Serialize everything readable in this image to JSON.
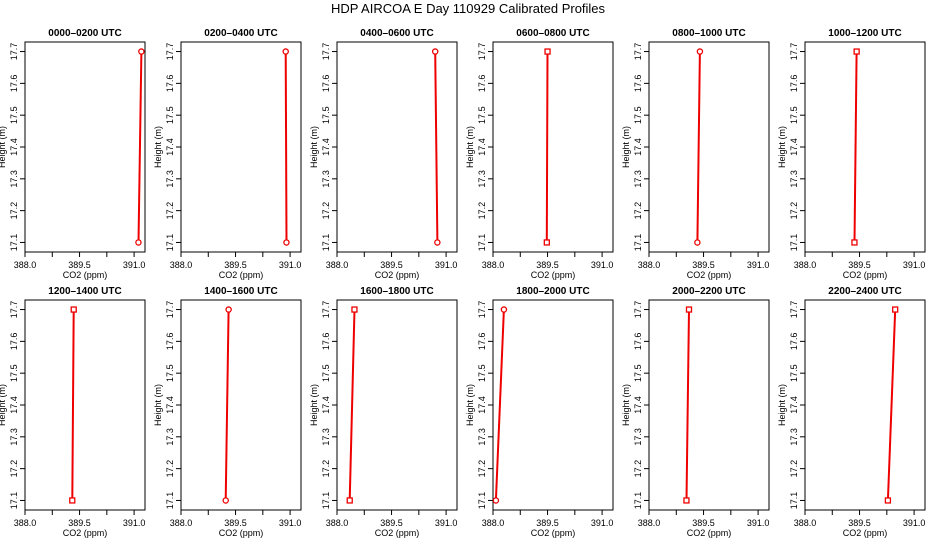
{
  "figure": {
    "title": "HDP AIRCOA E  Day 110929  Calibrated Profiles"
  },
  "chart_data": [
    {
      "type": "line",
      "title": "0000–0200 UTC",
      "xlabel": "CO2 (ppm)",
      "ylabel": "Height (m)",
      "xlim": [
        388.0,
        391.3
      ],
      "ylim": [
        17.07,
        17.73
      ],
      "xticks": [
        "388.0",
        "389.5",
        "391.0"
      ],
      "yticks": [
        "17.1",
        "17.2",
        "17.3",
        "17.4",
        "17.5",
        "17.6",
        "17.7"
      ],
      "series": [
        {
          "x": [
            391.12,
            391.2
          ],
          "y": [
            17.1,
            17.7
          ],
          "marker": "circle"
        }
      ]
    },
    {
      "type": "line",
      "title": "0200–0400 UTC",
      "xlabel": "CO2 (ppm)",
      "ylabel": "Height (m)",
      "xlim": [
        388.0,
        391.3
      ],
      "ylim": [
        17.07,
        17.73
      ],
      "xticks": [
        "388.0",
        "389.5",
        "391.0"
      ],
      "yticks": [
        "17.1",
        "17.2",
        "17.3",
        "17.4",
        "17.5",
        "17.6",
        "17.7"
      ],
      "series": [
        {
          "x": [
            390.9,
            390.88
          ],
          "y": [
            17.1,
            17.7
          ],
          "marker": "circle"
        }
      ]
    },
    {
      "type": "line",
      "title": "0400–0600 UTC",
      "xlabel": "CO2 (ppm)",
      "ylabel": "Height (m)",
      "xlim": [
        388.0,
        391.3
      ],
      "ylim": [
        17.07,
        17.73
      ],
      "xticks": [
        "388.0",
        "389.5",
        "391.0"
      ],
      "yticks": [
        "17.1",
        "17.2",
        "17.3",
        "17.4",
        "17.5",
        "17.6",
        "17.7"
      ],
      "series": [
        {
          "x": [
            390.76,
            390.7
          ],
          "y": [
            17.1,
            17.7
          ],
          "marker": "circle"
        }
      ]
    },
    {
      "type": "line",
      "title": "0600–0800 UTC",
      "xlabel": "CO2 (ppm)",
      "ylabel": "Height (m)",
      "xlim": [
        388.0,
        391.3
      ],
      "ylim": [
        17.07,
        17.73
      ],
      "xticks": [
        "388.0",
        "389.5",
        "391.0"
      ],
      "yticks": [
        "17.1",
        "17.2",
        "17.3",
        "17.4",
        "17.5",
        "17.6",
        "17.7"
      ],
      "series": [
        {
          "x": [
            389.48,
            389.5
          ],
          "y": [
            17.1,
            17.7
          ],
          "marker": "square"
        }
      ]
    },
    {
      "type": "line",
      "title": "0800–1000 UTC",
      "xlabel": "CO2 (ppm)",
      "ylabel": "Height (m)",
      "xlim": [
        388.0,
        391.3
      ],
      "ylim": [
        17.07,
        17.73
      ],
      "xticks": [
        "388.0",
        "389.5",
        "391.0"
      ],
      "yticks": [
        "17.1",
        "17.2",
        "17.3",
        "17.4",
        "17.5",
        "17.6",
        "17.7"
      ],
      "series": [
        {
          "x": [
            389.33,
            389.4
          ],
          "y": [
            17.1,
            17.7
          ],
          "marker": "circle"
        }
      ]
    },
    {
      "type": "line",
      "title": "1000–1200 UTC",
      "xlabel": "CO2 (ppm)",
      "ylabel": "Height (m)",
      "xlim": [
        388.0,
        391.3
      ],
      "ylim": [
        17.07,
        17.73
      ],
      "xticks": [
        "388.0",
        "389.5",
        "391.0"
      ],
      "yticks": [
        "17.1",
        "17.2",
        "17.3",
        "17.4",
        "17.5",
        "17.6",
        "17.7"
      ],
      "series": [
        {
          "x": [
            389.36,
            389.42
          ],
          "y": [
            17.1,
            17.7
          ],
          "marker": "square"
        }
      ]
    },
    {
      "type": "line",
      "title": "1200–1400 UTC",
      "xlabel": "CO2 (ppm)",
      "ylabel": "Height (m)",
      "xlim": [
        388.0,
        391.3
      ],
      "ylim": [
        17.07,
        17.73
      ],
      "xticks": [
        "388.0",
        "389.5",
        "391.0"
      ],
      "yticks": [
        "17.1",
        "17.2",
        "17.3",
        "17.4",
        "17.5",
        "17.6",
        "17.7"
      ],
      "series": [
        {
          "x": [
            389.3,
            389.34
          ],
          "y": [
            17.1,
            17.7
          ],
          "marker": "square"
        }
      ]
    },
    {
      "type": "line",
      "title": "1400–1600 UTC",
      "xlabel": "CO2 (ppm)",
      "ylabel": "Height (m)",
      "xlim": [
        388.0,
        391.3
      ],
      "ylim": [
        17.07,
        17.73
      ],
      "xticks": [
        "388.0",
        "389.5",
        "391.0"
      ],
      "yticks": [
        "17.1",
        "17.2",
        "17.3",
        "17.4",
        "17.5",
        "17.6",
        "17.7"
      ],
      "series": [
        {
          "x": [
            389.23,
            389.31
          ],
          "y": [
            17.1,
            17.7
          ],
          "marker": "circle"
        }
      ]
    },
    {
      "type": "line",
      "title": "1600–1800 UTC",
      "xlabel": "CO2 (ppm)",
      "ylabel": "Height (m)",
      "xlim": [
        388.0,
        391.3
      ],
      "ylim": [
        17.07,
        17.73
      ],
      "xticks": [
        "388.0",
        "389.5",
        "391.0"
      ],
      "yticks": [
        "17.1",
        "17.2",
        "17.3",
        "17.4",
        "17.5",
        "17.6",
        "17.7"
      ],
      "series": [
        {
          "x": [
            388.35,
            388.48
          ],
          "y": [
            17.1,
            17.7
          ],
          "marker": "square"
        }
      ]
    },
    {
      "type": "line",
      "title": "1800–2000 UTC",
      "xlabel": "CO2 (ppm)",
      "ylabel": "Height (m)",
      "xlim": [
        388.0,
        391.3
      ],
      "ylim": [
        17.07,
        17.73
      ],
      "xticks": [
        "388.0",
        "389.5",
        "391.0"
      ],
      "yticks": [
        "17.1",
        "17.2",
        "17.3",
        "17.4",
        "17.5",
        "17.6",
        "17.7"
      ],
      "series": [
        {
          "x": [
            388.08,
            388.3
          ],
          "y": [
            17.1,
            17.7
          ],
          "marker": "circle"
        }
      ]
    },
    {
      "type": "line",
      "title": "2000–2200 UTC",
      "xlabel": "CO2 (ppm)",
      "ylabel": "Height (m)",
      "xlim": [
        388.0,
        391.3
      ],
      "ylim": [
        17.07,
        17.73
      ],
      "xticks": [
        "388.0",
        "389.5",
        "391.0"
      ],
      "yticks": [
        "17.1",
        "17.2",
        "17.3",
        "17.4",
        "17.5",
        "17.6",
        "17.7"
      ],
      "series": [
        {
          "x": [
            389.03,
            389.1
          ],
          "y": [
            17.1,
            17.7
          ],
          "marker": "square"
        }
      ]
    },
    {
      "type": "line",
      "title": "2200–2400 UTC",
      "xlabel": "CO2 (ppm)",
      "ylabel": "Height (m)",
      "xlim": [
        388.0,
        391.3
      ],
      "ylim": [
        17.07,
        17.73
      ],
      "xticks": [
        "388.0",
        "389.5",
        "391.0"
      ],
      "yticks": [
        "17.1",
        "17.2",
        "17.3",
        "17.4",
        "17.5",
        "17.6",
        "17.7"
      ],
      "series": [
        {
          "x": [
            390.28,
            390.48
          ],
          "y": [
            17.1,
            17.7
          ],
          "marker": "square"
        }
      ]
    }
  ],
  "style": {
    "line_color": "#ee0000",
    "axis_color": "#000000"
  }
}
